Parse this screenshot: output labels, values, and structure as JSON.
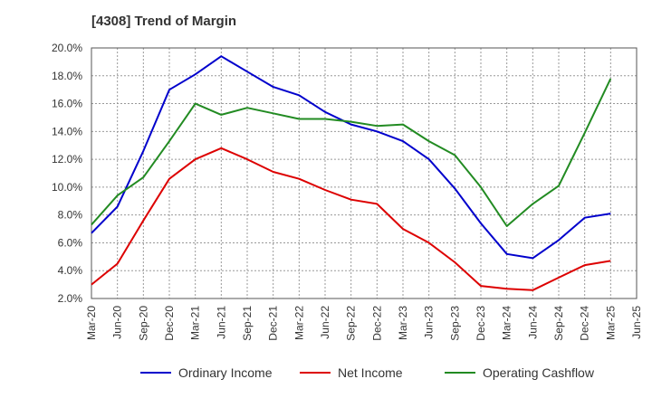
{
  "chart_data": {
    "type": "line",
    "title": "[4308]  Trend of Margin",
    "categories": [
      "Mar-20",
      "Jun-20",
      "Sep-20",
      "Dec-20",
      "Mar-21",
      "Jun-21",
      "Sep-21",
      "Dec-21",
      "Mar-22",
      "Jun-22",
      "Sep-22",
      "Dec-22",
      "Mar-23",
      "Jun-23",
      "Sep-23",
      "Dec-23",
      "Mar-24",
      "Jun-24",
      "Sep-24",
      "Dec-24",
      "Mar-25",
      "Jun-25"
    ],
    "y_ticks": [
      "2.0%",
      "4.0%",
      "6.0%",
      "8.0%",
      "10.0%",
      "12.0%",
      "14.0%",
      "16.0%",
      "18.0%",
      "20.0%"
    ],
    "ylim": [
      2,
      20
    ],
    "grid": true,
    "legend_position": "bottom",
    "series": [
      {
        "name": "Ordinary Income",
        "color": "#0000cc",
        "values": [
          6.7,
          8.6,
          12.6,
          17.0,
          18.1,
          19.4,
          18.3,
          17.2,
          16.6,
          15.4,
          14.5,
          14.0,
          13.3,
          12.0,
          9.9,
          7.4,
          5.2,
          4.9,
          6.2,
          7.8,
          8.1,
          null
        ]
      },
      {
        "name": "Net Income",
        "color": "#dd0000",
        "values": [
          3.0,
          4.5,
          7.6,
          10.6,
          12.0,
          12.8,
          12.0,
          11.1,
          10.6,
          9.8,
          9.1,
          8.8,
          7.0,
          6.0,
          4.6,
          2.9,
          2.7,
          2.6,
          3.5,
          4.4,
          4.7,
          null
        ]
      },
      {
        "name": "Operating Cashflow",
        "color": "#228b22",
        "values": [
          7.3,
          9.4,
          10.7,
          13.3,
          16.0,
          15.2,
          15.7,
          15.3,
          14.9,
          14.9,
          14.7,
          14.4,
          14.5,
          13.3,
          12.3,
          10.0,
          7.2,
          8.8,
          10.1,
          13.9,
          17.8,
          null
        ]
      }
    ]
  }
}
